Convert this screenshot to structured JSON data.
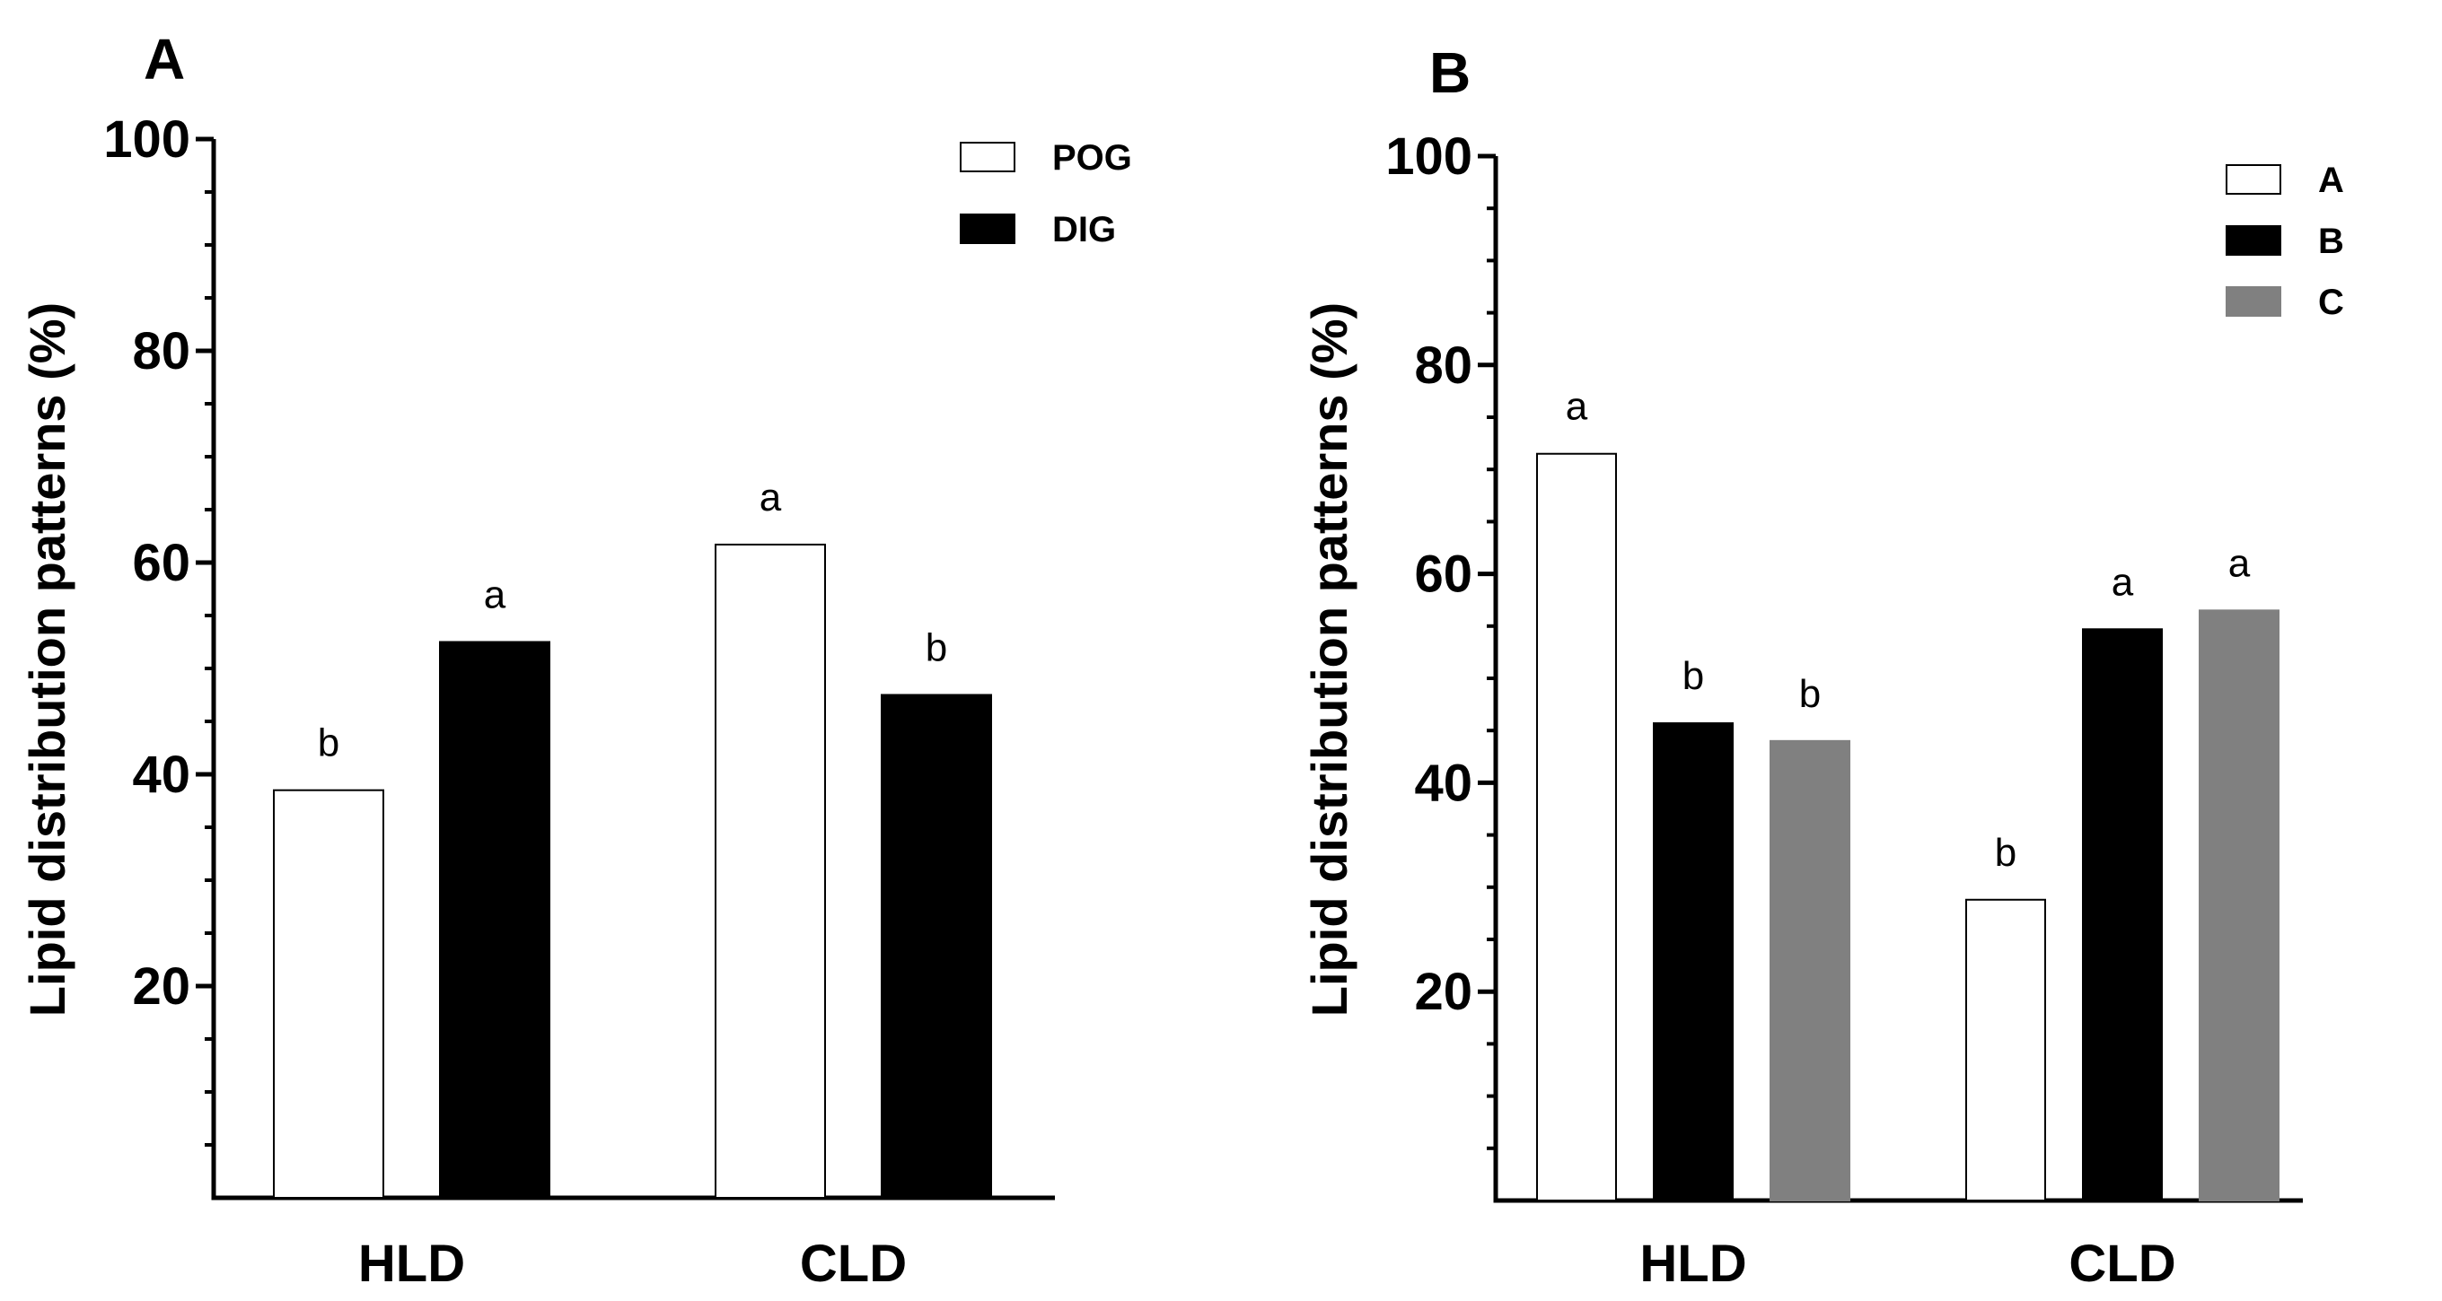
{
  "chart_data": [
    {
      "type": "bar",
      "panel": "A",
      "categories": [
        "HLD",
        "CLD"
      ],
      "series": [
        {
          "name": "POG",
          "color": "#ffffff",
          "values": [
            38.5,
            61.7
          ],
          "letters": [
            "b",
            "a"
          ]
        },
        {
          "name": "DIG",
          "color": "#000000",
          "values": [
            52.5,
            47.5
          ],
          "letters": [
            "a",
            "b"
          ]
        }
      ],
      "ylabel": "Lipid distribution patterns (%)",
      "ylim": [
        0,
        100
      ],
      "yticks": [
        "20",
        "40",
        "60",
        "80",
        "100"
      ],
      "legend_position": "top-right"
    },
    {
      "type": "bar",
      "panel": "B",
      "categories": [
        "HLD",
        "CLD"
      ],
      "series": [
        {
          "name": "A",
          "color": "#ffffff",
          "values": [
            71.5,
            28.8
          ],
          "letters": [
            "a",
            "b"
          ]
        },
        {
          "name": "B",
          "color": "#000000",
          "values": [
            45.7,
            54.7
          ],
          "letters": [
            "b",
            "a"
          ]
        },
        {
          "name": "C",
          "color": "#808080",
          "values": [
            44.0,
            56.5
          ],
          "letters": [
            "b",
            "a"
          ]
        }
      ],
      "ylabel": "Lipid distribution patterns (%)",
      "ylim": [
        0,
        100
      ],
      "yticks": [
        "20",
        "40",
        "60",
        "80",
        "100"
      ],
      "legend_position": "top-right"
    }
  ]
}
